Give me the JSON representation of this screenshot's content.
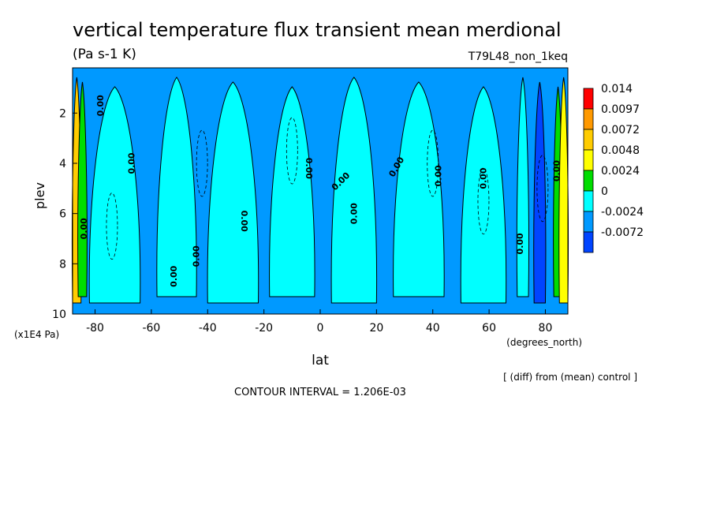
{
  "chart_data": {
    "type": "heatmap",
    "title": "vertical temperature flux transient mean merdional",
    "units": "(Pa s-1 K)",
    "experiment": "T79L48_non_1keq",
    "xlabel": "lat",
    "x_units": "(degrees_north)",
    "ylabel": "plev",
    "y_units": "(x1E4 Pa)",
    "xlim": [
      -88,
      88
    ],
    "ylim": [
      0.2,
      10
    ],
    "x_ticks": [
      -80,
      -60,
      -40,
      -20,
      0,
      20,
      40,
      60,
      80
    ],
    "x_tick_labels": [
      "-80",
      "-60",
      "-40",
      "-20",
      "0",
      "20",
      "40",
      "60",
      "80"
    ],
    "y_ticks": [
      2,
      4,
      6,
      8,
      10
    ],
    "y_tick_labels": [
      "2",
      "4",
      "6",
      "8",
      "10"
    ],
    "legend": {
      "levels": [
        "0.014",
        "0.0097",
        "0.0072",
        "0.0048",
        "0.0024",
        "0",
        "-0.0024",
        "-0.0072"
      ],
      "colors": [
        "#ff0000",
        "#ff9900",
        "#ffcc00",
        "#ffff00",
        "#00dd00",
        "#00ffff",
        "#0099ff",
        "#0044ff"
      ]
    },
    "contour_label": "0.00",
    "contour_interval_text": "CONTOUR INTERVAL = 1.206E-03",
    "note": "[ (diff) from (mean) control ]",
    "field_bands": [
      {
        "lat_range": [
          -88,
          -85
        ],
        "band": "0.0072"
      },
      {
        "lat_range": [
          -86,
          -83
        ],
        "band": "0.0024"
      },
      {
        "lat_range": [
          -82,
          -64
        ],
        "band": "0"
      },
      {
        "lat_range": [
          -58,
          -44
        ],
        "band": "0"
      },
      {
        "lat_range": [
          -40,
          -22
        ],
        "band": "0"
      },
      {
        "lat_range": [
          -18,
          -2
        ],
        "band": "0"
      },
      {
        "lat_range": [
          4,
          20
        ],
        "band": "0"
      },
      {
        "lat_range": [
          26,
          44
        ],
        "band": "0"
      },
      {
        "lat_range": [
          50,
          66
        ],
        "band": "0"
      },
      {
        "lat_range": [
          70,
          74
        ],
        "band": "0"
      },
      {
        "lat_range": [
          76,
          80
        ],
        "band": "-0.0072"
      },
      {
        "lat_range": [
          83,
          86
        ],
        "band": "0.0024"
      },
      {
        "lat_range": [
          85,
          88
        ],
        "band": "0.0048"
      }
    ]
  },
  "ui": {
    "background": "#ffffff",
    "axis_color": "#000000"
  }
}
